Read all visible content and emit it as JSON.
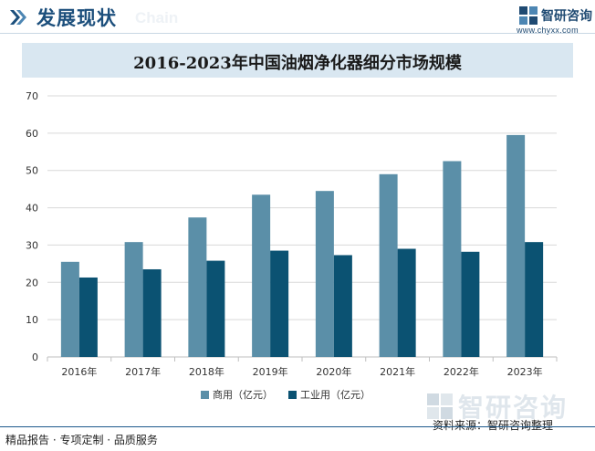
{
  "header": {
    "title": "发展现状",
    "title_en": "Chain",
    "logo_name": "智研咨询",
    "logo_url": "www.chyxx.com"
  },
  "watermark": {
    "text": "智研咨询"
  },
  "footer": {
    "left": "精品报告 · 专项定制 · 品质服务",
    "source": "资料来源：智研咨询整理"
  },
  "colors": {
    "series_1": "#5b8fa8",
    "series_2": "#0b5272",
    "title_bar": "#d9e7f1",
    "header_text": "#1c4f7c"
  },
  "chart_data": {
    "type": "bar",
    "title": "2016-2023年中国油烟净化器细分市场规模",
    "xlabel": "",
    "ylabel": "",
    "categories": [
      "2016年",
      "2017年",
      "2018年",
      "2019年",
      "2020年",
      "2021年",
      "2022年",
      "2023年"
    ],
    "series": [
      {
        "name": "商用（亿元）",
        "values": [
          25.5,
          30.8,
          37.4,
          43.5,
          44.5,
          49.0,
          52.5,
          59.5
        ]
      },
      {
        "name": "工业用（亿元）",
        "values": [
          21.3,
          23.5,
          25.8,
          28.5,
          27.3,
          29.0,
          28.2,
          30.8
        ]
      }
    ],
    "ylim": [
      0,
      70
    ],
    "yticks": [
      0,
      10,
      20,
      30,
      40,
      50,
      60,
      70
    ],
    "grid": true,
    "legend_position": "bottom"
  }
}
